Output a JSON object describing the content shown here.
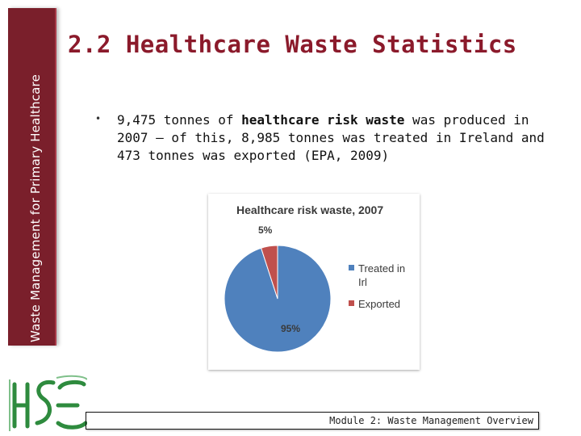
{
  "sidebar": {
    "label": "Waste Management for Primary Healthcare"
  },
  "slide": {
    "title": "2.2 Healthcare Waste Statistics",
    "bullet": {
      "part1": "9,475 tonnes of ",
      "bold": "healthcare risk waste",
      "part2": " was produced in 2007 – of this, 8,985 tonnes was treated in Ireland and 473 tonnes was exported (EPA, 2009)"
    }
  },
  "chart_data": {
    "type": "pie",
    "title": "Healthcare risk waste, 2007",
    "slices": [
      {
        "label": "Treated in Irl",
        "value": 95,
        "display": "95%",
        "color": "#4f81bd"
      },
      {
        "label": "Exported",
        "value": 5,
        "display": "5%",
        "color": "#c0504d"
      }
    ]
  },
  "logo": {
    "text": "HSE"
  },
  "footer": {
    "text": "Module 2: Waste Management Overview"
  }
}
